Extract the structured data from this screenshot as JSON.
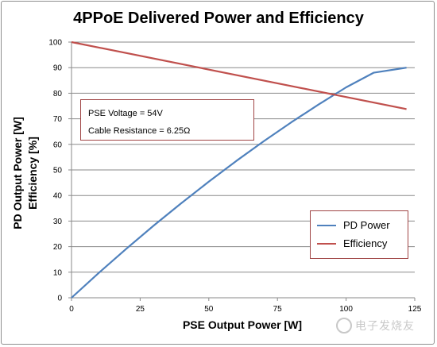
{
  "chart_data": {
    "type": "line",
    "title": "4PPoE Delivered Power and Efficiency",
    "xlabel": "PSE Output Power [W]",
    "ylabel_lines": [
      "PD Output Power [W]",
      "Efficiency [%]"
    ],
    "xlim": [
      0,
      125
    ],
    "ylim": [
      0,
      100
    ],
    "x_ticks": [
      "0",
      "25",
      "50",
      "75",
      "100",
      "125"
    ],
    "y_ticks": [
      "0",
      "10",
      "20",
      "30",
      "40",
      "50",
      "60",
      "70",
      "80",
      "90",
      "100"
    ],
    "grid": "horizontal",
    "legend_position": "lower-right",
    "series": [
      {
        "name": "PD Power",
        "color": "#4f81bd",
        "points": [
          [
            0,
            0
          ],
          [
            10,
            9.8
          ],
          [
            20,
            19.2
          ],
          [
            30,
            28.3
          ],
          [
            40,
            37
          ],
          [
            50,
            45.4
          ],
          [
            60,
            53.5
          ],
          [
            70,
            61.2
          ],
          [
            80,
            68.6
          ],
          [
            90,
            75.6
          ],
          [
            100,
            82.3
          ],
          [
            110,
            88
          ],
          [
            122,
            90
          ]
        ]
      },
      {
        "name": "Efficiency",
        "color": "#c0504d",
        "points": [
          [
            0,
            100
          ],
          [
            122,
            73.8
          ]
        ]
      }
    ],
    "annotations": [
      "PSE Voltage = 54V",
      "Cable Resistance = 6.25Ω"
    ]
  },
  "watermark_text": "电子发烧友"
}
